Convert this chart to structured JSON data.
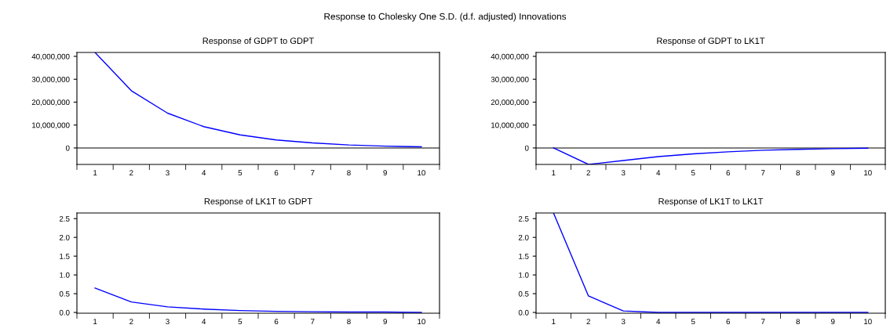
{
  "chart_data": [
    {
      "type": "line",
      "title": "Response of GDPT to GDPT",
      "annotations": [
        "Response to Cholesky One S.D. (d.f. adjusted) Innovations"
      ],
      "categories": [
        "1",
        "2",
        "3",
        "4",
        "5",
        "6",
        "7",
        "8",
        "9",
        "10"
      ],
      "series": [
        {
          "color": "#0000ff",
          "values": [
            41700000,
            25000000,
            15200000,
            9300000,
            5700000,
            3500000,
            2200000,
            1300000,
            800000,
            500000
          ]
        }
      ],
      "ylim": [
        -7200000,
        41700000
      ],
      "yticks": [
        {
          "value": 0,
          "label": "0"
        },
        {
          "value": 10000000,
          "label": "10,000,000"
        },
        {
          "value": 20000000,
          "label": "20,000,000"
        },
        {
          "value": 30000000,
          "label": "30,000,000"
        },
        {
          "value": 40000000,
          "label": "40,000,000"
        }
      ],
      "ref_lines": [
        {
          "axis": "y",
          "value": 0,
          "color": "#000000"
        }
      ],
      "grid": false,
      "legend": false,
      "marker": "none",
      "line_style": "solid"
    },
    {
      "type": "line",
      "title": "Response of GDPT to LK1T",
      "categories": [
        "1",
        "2",
        "3",
        "4",
        "5",
        "6",
        "7",
        "8",
        "9",
        "10"
      ],
      "series": [
        {
          "color": "#0000ff",
          "values": [
            0,
            -7200000,
            -5500000,
            -3800000,
            -2600000,
            -1700000,
            -1000000,
            -600000,
            -300000,
            -100000
          ]
        }
      ],
      "ylim": [
        -7200000,
        41700000
      ],
      "yticks": [
        {
          "value": 0,
          "label": "0"
        },
        {
          "value": 10000000,
          "label": "10,000,000"
        },
        {
          "value": 20000000,
          "label": "20,000,000"
        },
        {
          "value": 30000000,
          "label": "30,000,000"
        },
        {
          "value": 40000000,
          "label": "40,000,000"
        }
      ],
      "ref_lines": [
        {
          "axis": "y",
          "value": 0,
          "color": "#000000"
        }
      ],
      "grid": false,
      "legend": false,
      "marker": "none",
      "line_style": "solid"
    },
    {
      "type": "line",
      "title": "Response of LK1T to GDPT",
      "categories": [
        "1",
        "2",
        "3",
        "4",
        "5",
        "6",
        "7",
        "8",
        "9",
        "10"
      ],
      "series": [
        {
          "color": "#0000ff",
          "values": [
            0.65,
            0.28,
            0.15,
            0.09,
            0.05,
            0.03,
            0.02,
            0.01,
            0.01,
            0.0
          ]
        }
      ],
      "ylim": [
        -0.02,
        2.65
      ],
      "yticks": [
        {
          "value": 0,
          "label": "0.0"
        },
        {
          "value": 0.5,
          "label": "0.5"
        },
        {
          "value": 1,
          "label": "1.0"
        },
        {
          "value": 1.5,
          "label": "1.5"
        },
        {
          "value": 2,
          "label": "2.0"
        },
        {
          "value": 2.5,
          "label": "2.5"
        }
      ],
      "grid": false,
      "legend": false,
      "marker": "none",
      "line_style": "solid"
    },
    {
      "type": "line",
      "title": "Response of LK1T to LK1T",
      "categories": [
        "1",
        "2",
        "3",
        "4",
        "5",
        "6",
        "7",
        "8",
        "9",
        "10"
      ],
      "series": [
        {
          "color": "#0000ff",
          "values": [
            2.65,
            0.44,
            0.04,
            0.0,
            0.0,
            0.0,
            0.0,
            0.0,
            0.0,
            0.0
          ]
        }
      ],
      "ylim": [
        -0.02,
        2.65
      ],
      "yticks": [
        {
          "value": 0,
          "label": "0.0"
        },
        {
          "value": 0.5,
          "label": "0.5"
        },
        {
          "value": 1,
          "label": "1.0"
        },
        {
          "value": 1.5,
          "label": "1.5"
        },
        {
          "value": 2,
          "label": "2.0"
        },
        {
          "value": 2.5,
          "label": "2.5"
        }
      ],
      "grid": false,
      "legend": false,
      "marker": "none",
      "line_style": "solid"
    }
  ]
}
